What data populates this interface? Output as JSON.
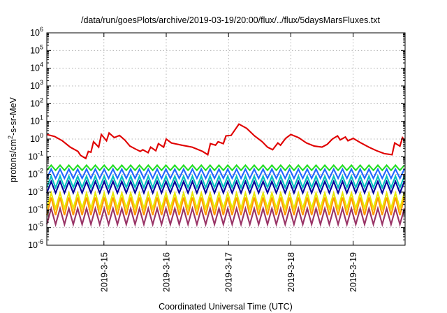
{
  "chart_data": {
    "type": "line",
    "title": "/data/run/goesPlots/archive/2019-03-19/20:00/flux/../flux/5daysMarsFluxes.txt",
    "xlabel": "Coordinated Universal Time (UTC)",
    "ylabel": {
      "base": "protons/cm",
      "sup": "2",
      "rest": "-s-sr-MeV"
    },
    "y_scale": "log",
    "ylim": [
      1e-06,
      1000000.0
    ],
    "xlim": [
      "2019-03-14T02:00",
      "2019-03-19T20:00"
    ],
    "grid": true,
    "y_ticks": [
      {
        "value": 1e-06,
        "base": "10",
        "exp": "-6"
      },
      {
        "value": 1e-05,
        "base": "10",
        "exp": "-5"
      },
      {
        "value": 0.0001,
        "base": "10",
        "exp": "-4"
      },
      {
        "value": 0.001,
        "base": "10",
        "exp": "-3"
      },
      {
        "value": 0.01,
        "base": "10",
        "exp": "-2"
      },
      {
        "value": 0.1,
        "base": "10",
        "exp": "-1"
      },
      {
        "value": 1.0,
        "base": "10",
        "exp": "0"
      },
      {
        "value": 10.0,
        "base": "10",
        "exp": "1"
      },
      {
        "value": 100.0,
        "base": "10",
        "exp": "2"
      },
      {
        "value": 1000.0,
        "base": "10",
        "exp": "3"
      },
      {
        "value": 10000.0,
        "base": "10",
        "exp": "4"
      },
      {
        "value": 100000.0,
        "base": "10",
        "exp": "5"
      },
      {
        "value": 1000000.0,
        "base": "10",
        "exp": "6"
      }
    ],
    "x_ticks": [
      {
        "value": "2019-03-15T00:00",
        "label": "2019-3-15"
      },
      {
        "value": "2019-03-16T00:00",
        "label": "2019-3-16"
      },
      {
        "value": "2019-03-17T00:00",
        "label": "2019-3-17"
      },
      {
        "value": "2019-03-18T00:00",
        "label": "2019-3-18"
      },
      {
        "value": "2019-03-19T00:00",
        "label": "2019-3-19"
      }
    ],
    "series": [
      {
        "color": "#e00000",
        "x": [
          "2019-03-14T02:00",
          "2019-03-14T05:00",
          "2019-03-14T08:00",
          "2019-03-14T11:00",
          "2019-03-14T14:00",
          "2019-03-14T15:00",
          "2019-03-14T17:00",
          "2019-03-14T18:00",
          "2019-03-14T19:00",
          "2019-03-14T20:00",
          "2019-03-14T22:00",
          "2019-03-14T23:00",
          "2019-03-15T01:00",
          "2019-03-15T02:00",
          "2019-03-15T04:00",
          "2019-03-15T06:00",
          "2019-03-15T08:00",
          "2019-03-15T10:00",
          "2019-03-15T12:00",
          "2019-03-15T14:00",
          "2019-03-15T15:00",
          "2019-03-15T17:00",
          "2019-03-15T18:00",
          "2019-03-15T20:00",
          "2019-03-15T21:00",
          "2019-03-15T23:00",
          "2019-03-16T00:00",
          "2019-03-16T02:00",
          "2019-03-16T06:00",
          "2019-03-16T10:00",
          "2019-03-16T14:00",
          "2019-03-16T16:00",
          "2019-03-16T17:00",
          "2019-03-16T19:00",
          "2019-03-16T20:00",
          "2019-03-16T22:00",
          "2019-03-16T23:00",
          "2019-03-17T01:00",
          "2019-03-17T04:00",
          "2019-03-17T07:00",
          "2019-03-17T10:00",
          "2019-03-17T13:00",
          "2019-03-17T15:00",
          "2019-03-17T17:00",
          "2019-03-17T19:00",
          "2019-03-17T20:00",
          "2019-03-17T22:00",
          "2019-03-18T00:00",
          "2019-03-18T03:00",
          "2019-03-18T06:00",
          "2019-03-18T09:00",
          "2019-03-18T12:00",
          "2019-03-18T14:00",
          "2019-03-18T16:00",
          "2019-03-18T18:00",
          "2019-03-18T19:00",
          "2019-03-18T21:00",
          "2019-03-18T22:00",
          "2019-03-19T00:00",
          "2019-03-19T03:00",
          "2019-03-19T06:00",
          "2019-03-19T09:00",
          "2019-03-19T12:00",
          "2019-03-19T15:00",
          "2019-03-19T16:00",
          "2019-03-19T18:00",
          "2019-03-19T19:00",
          "2019-03-19T20:00"
        ],
        "y": [
          1.8,
          1.4,
          0.8,
          0.35,
          0.2,
          0.12,
          0.08,
          0.2,
          0.18,
          0.7,
          0.35,
          1.8,
          0.8,
          2.2,
          1.2,
          1.6,
          0.9,
          0.4,
          0.28,
          0.2,
          0.25,
          0.17,
          0.35,
          0.22,
          0.55,
          0.35,
          1,
          0.6,
          0.45,
          0.35,
          0.2,
          0.13,
          0.55,
          0.45,
          0.7,
          0.55,
          1.5,
          1.6,
          7,
          4,
          1.5,
          0.7,
          0.35,
          0.25,
          0.6,
          0.45,
          1.1,
          1.8,
          1.2,
          0.6,
          0.4,
          0.35,
          0.5,
          1,
          1.5,
          0.9,
          1.3,
          0.8,
          1.1,
          0.6,
          0.35,
          0.22,
          0.15,
          0.13,
          0.6,
          0.4,
          1.2,
          0.8
        ]
      },
      {
        "color": "#22dd22",
        "pattern": {
          "base": 0.017,
          "peak": 0.033,
          "period_hours": 3.4
        }
      },
      {
        "color": "#2266ff",
        "pattern": {
          "base": 0.006,
          "peak": 0.02,
          "period_hours": 3.4
        }
      },
      {
        "color": "#00bfbf",
        "pattern": {
          "base": 0.0018,
          "peak": 0.008,
          "period_hours": 3.4
        }
      },
      {
        "color": "#000099",
        "pattern": {
          "base": 0.0009,
          "peak": 0.004,
          "period_hours": 3.4
        }
      },
      {
        "color": "#e8e800",
        "pattern": {
          "base": 0.00012,
          "peak": 0.0009,
          "period_hours": 3.4
        }
      },
      {
        "color": "#ff9900",
        "pattern": {
          "base": 5e-05,
          "peak": 0.0005,
          "period_hours": 3.4
        }
      },
      {
        "color": "#993366",
        "pattern": {
          "base": 1.5e-05,
          "peak": 0.00012,
          "period_hours": 3.4
        }
      }
    ]
  }
}
